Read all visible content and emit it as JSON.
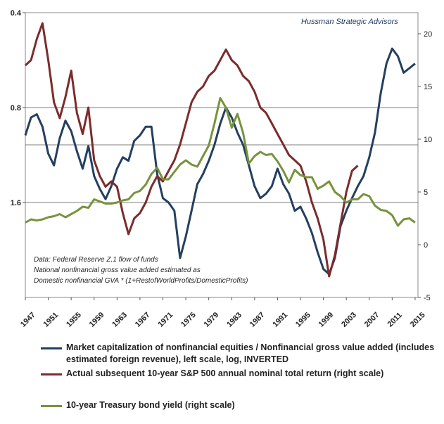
{
  "brand": "Hussman Strategic Advisors",
  "notes": [
    "Data:  Federal Reserve Z.1 flow of funds",
    "National nonfinancial gross value added estimated as",
    "Domestic nonfinancial GVA * (1+RestofWorldProfits/DomesticProfits)"
  ],
  "chart_data": {
    "type": "line",
    "x_ticks": [
      "1947",
      "1951",
      "1955",
      "1959",
      "1963",
      "1967",
      "1971",
      "1975",
      "1979",
      "1983",
      "1987",
      "1991",
      "1995",
      "1999",
      "2003",
      "2007",
      "2011",
      "2015"
    ],
    "xlim": [
      1947,
      2015.5
    ],
    "left_axis": {
      "scale": "log",
      "inverted": true,
      "ticks": [
        "0.4",
        "0.8",
        "1.6"
      ],
      "ylim": [
        0.4,
        3.2
      ]
    },
    "right_axis": {
      "ticks": [
        "20",
        "15",
        "10",
        "5",
        "0",
        "-5"
      ],
      "ylim": [
        -5,
        22
      ]
    },
    "grid": "horizontal reference lines at 0.8, 1.6 and about 1.05 on the left scale",
    "series": [
      {
        "name": "Market capitalization of nonfinancial equities / Nonfinancial gross value added (includes estimated foreign revenue), left scale, log, INVERTED",
        "axis": "left",
        "color": "#243f60",
        "x": [
          1947,
          1948,
          1949,
          1950,
          1951,
          1952,
          1953,
          1954,
          1955,
          1956,
          1957,
          1958,
          1959,
          1960,
          1961,
          1962,
          1963,
          1964,
          1965,
          1966,
          1967,
          1968,
          1969,
          1970,
          1971,
          1972,
          1973,
          1974,
          1975,
          1976,
          1977,
          1978,
          1979,
          1980,
          1981,
          1982,
          1983,
          1984,
          1985,
          1986,
          1987,
          1988,
          1989,
          1990,
          1991,
          1992,
          1993,
          1994,
          1995,
          1996,
          1997,
          1998,
          1999,
          2000,
          2001,
          2002,
          2003,
          2004,
          2005,
          2006,
          2007,
          2008,
          2009,
          2010,
          2011,
          2012,
          2013,
          2014,
          2015
        ],
        "y": [
          0.98,
          0.86,
          0.84,
          0.92,
          1.12,
          1.22,
          1.0,
          0.88,
          0.95,
          1.1,
          1.25,
          1.06,
          1.32,
          1.45,
          1.56,
          1.42,
          1.25,
          1.15,
          1.18,
          1.02,
          0.98,
          0.92,
          0.92,
          1.3,
          1.55,
          1.6,
          1.7,
          2.4,
          2.05,
          1.7,
          1.4,
          1.3,
          1.18,
          1.05,
          0.9,
          0.8,
          0.86,
          0.96,
          1.05,
          1.22,
          1.42,
          1.55,
          1.5,
          1.42,
          1.25,
          1.4,
          1.5,
          1.7,
          1.65,
          1.8,
          2.0,
          2.3,
          2.6,
          2.7,
          2.4,
          1.9,
          1.7,
          1.55,
          1.42,
          1.32,
          1.15,
          0.96,
          0.72,
          0.58,
          0.52,
          0.55,
          0.62,
          0.6,
          0.58
        ]
      },
      {
        "name": "Actual subsequent 10-year S&P 500 annual nominal total return (right scale)",
        "axis": "right",
        "color": "#7b2c2c",
        "x": [
          1947,
          1948,
          1949,
          1950,
          1951,
          1952,
          1953,
          1954,
          1955,
          1956,
          1957,
          1958,
          1959,
          1960,
          1961,
          1962,
          1963,
          1964,
          1965,
          1966,
          1967,
          1968,
          1969,
          1970,
          1971,
          1972,
          1973,
          1974,
          1975,
          1976,
          1977,
          1978,
          1979,
          1980,
          1981,
          1982,
          1983,
          1984,
          1985,
          1986,
          1987,
          1988,
          1989,
          1990,
          1991,
          1992,
          1993,
          1994,
          1995,
          1996,
          1997,
          1998,
          1999,
          2000,
          2001,
          2002,
          2003,
          2004,
          2005
        ],
        "y": [
          17.0,
          17.5,
          19.5,
          21.0,
          17.5,
          13.5,
          12.0,
          14.0,
          16.5,
          12.5,
          10.5,
          13.0,
          8.0,
          6.5,
          5.5,
          6.0,
          5.5,
          3.0,
          1.0,
          2.5,
          3.0,
          4.0,
          5.5,
          6.5,
          6.0,
          7.0,
          8.0,
          9.5,
          11.5,
          13.5,
          14.5,
          15.0,
          16.0,
          16.5,
          17.5,
          18.5,
          17.5,
          17.0,
          16.0,
          15.5,
          14.5,
          13.0,
          12.5,
          11.5,
          10.5,
          9.5,
          8.5,
          8.0,
          7.5,
          6.0,
          4.0,
          2.5,
          0.5,
          -3.0,
          -1.0,
          2.0,
          5.0,
          7.0,
          7.5
        ]
      },
      {
        "name": "10-year Treasury bond yield (right scale)",
        "axis": "right",
        "color": "#77933c",
        "x": [
          1947,
          1948,
          1949,
          1950,
          1951,
          1952,
          1953,
          1954,
          1955,
          1956,
          1957,
          1958,
          1959,
          1960,
          1961,
          1962,
          1963,
          1964,
          1965,
          1966,
          1967,
          1968,
          1969,
          1970,
          1971,
          1972,
          1973,
          1974,
          1975,
          1976,
          1977,
          1978,
          1979,
          1980,
          1981,
          1982,
          1983,
          1984,
          1985,
          1986,
          1987,
          1988,
          1989,
          1990,
          1991,
          1992,
          1993,
          1994,
          1995,
          1996,
          1997,
          1998,
          1999,
          2000,
          2001,
          2002,
          2003,
          2004,
          2005,
          2006,
          2007,
          2008,
          2009,
          2010,
          2011,
          2012,
          2013,
          2014,
          2015
        ],
        "y": [
          2.1,
          2.4,
          2.3,
          2.4,
          2.6,
          2.7,
          2.9,
          2.6,
          2.9,
          3.2,
          3.6,
          3.5,
          4.3,
          4.1,
          3.9,
          3.9,
          4.0,
          4.2,
          4.3,
          4.9,
          5.1,
          5.7,
          6.7,
          7.3,
          6.2,
          6.2,
          6.9,
          7.6,
          8.0,
          7.6,
          7.4,
          8.4,
          9.4,
          11.5,
          13.9,
          13.0,
          11.1,
          12.4,
          10.6,
          7.7,
          8.4,
          8.8,
          8.5,
          8.6,
          7.9,
          7.0,
          5.9,
          7.1,
          6.6,
          6.4,
          6.4,
          5.3,
          5.6,
          6.0,
          5.0,
          4.6,
          4.0,
          4.3,
          4.3,
          4.8,
          4.6,
          3.7,
          3.3,
          3.2,
          2.8,
          1.8,
          2.4,
          2.5,
          2.1
        ]
      }
    ]
  }
}
